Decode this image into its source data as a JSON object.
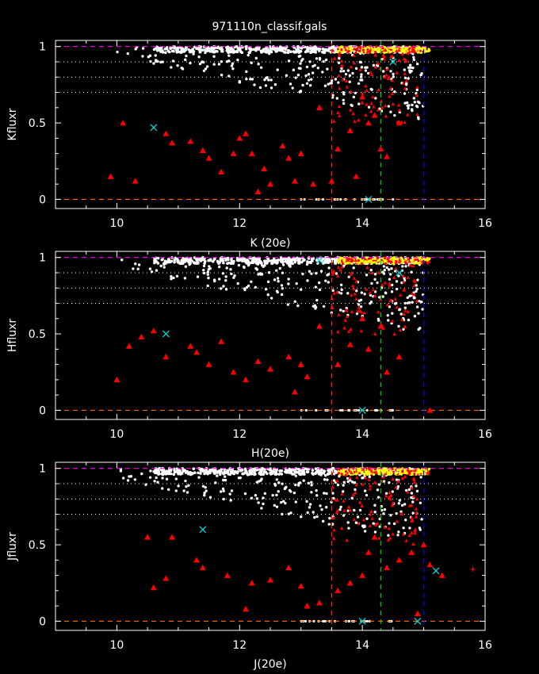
{
  "title": "971110n_classif.gals",
  "colors": {
    "background": "#000000",
    "axes": "#ffffff",
    "star": "#ff0000",
    "galaxy": "#ffffff",
    "dense": "#ffff00",
    "cross": "#00e0e0",
    "magenta": "#ff00ff",
    "orange": "#ff6600",
    "red_line": "#ff2200",
    "green_line": "#00cc00",
    "blue_line": "#0000ff"
  },
  "chart_data": [
    {
      "type": "scatter",
      "xlabel": "K (20e)",
      "ylabel": "Kfluxr",
      "xlim": [
        9,
        16
      ],
      "ylim": [
        -0.06,
        1.04
      ],
      "xticks": [
        "10",
        "12",
        "14",
        "16"
      ],
      "yticks": [
        "0",
        "0.5",
        "1"
      ],
      "hlines_dashed": [
        {
          "y": 1,
          "color": "magenta"
        },
        {
          "y": 0,
          "color": "orange"
        }
      ],
      "hlines_dotted": [
        0.9,
        0.8,
        0.7
      ],
      "vlines": [
        {
          "x": 13.5,
          "color": "red_line"
        },
        {
          "x": 14.3,
          "color": "green_line"
        },
        {
          "x": 15.0,
          "color": "blue_line"
        }
      ],
      "triangles": [
        [
          9.9,
          0.15
        ],
        [
          10.1,
          0.5
        ],
        [
          10.3,
          0.12
        ],
        [
          10.8,
          0.43
        ],
        [
          10.9,
          0.37
        ],
        [
          11.4,
          0.32
        ],
        [
          11.5,
          0.27
        ],
        [
          11.9,
          0.3
        ],
        [
          12.0,
          0.4
        ],
        [
          12.1,
          0.43
        ],
        [
          12.2,
          0.3
        ],
        [
          12.4,
          0.2
        ],
        [
          12.7,
          0.35
        ],
        [
          12.8,
          0.27
        ],
        [
          13.0,
          0.3
        ],
        [
          13.3,
          0.6
        ],
        [
          13.5,
          0.12
        ],
        [
          13.6,
          0.33
        ],
        [
          13.8,
          0.45
        ],
        [
          13.9,
          0.15
        ],
        [
          14.0,
          0.67
        ],
        [
          14.1,
          0.5
        ],
        [
          14.2,
          0.55
        ],
        [
          14.3,
          0.33
        ],
        [
          14.4,
          0.28
        ],
        [
          14.6,
          0.5
        ],
        [
          12.5,
          0.1
        ],
        [
          13.2,
          0.1
        ],
        [
          11.2,
          0.38
        ],
        [
          12.9,
          0.12
        ],
        [
          11.7,
          0.18
        ],
        [
          12.3,
          0.05
        ]
      ],
      "crosses": [
        [
          10.6,
          0.47
        ],
        [
          14.1,
          0.0
        ],
        [
          14.5,
          0.9
        ]
      ]
    },
    {
      "type": "scatter",
      "xlabel": "H(20e)",
      "ylabel": "Hfluxr",
      "xlim": [
        9,
        16
      ],
      "ylim": [
        -0.06,
        1.04
      ],
      "xticks": [
        "10",
        "12",
        "14",
        "16"
      ],
      "yticks": [
        "0",
        "0.5",
        "1"
      ],
      "hlines_dashed": [
        {
          "y": 1,
          "color": "magenta"
        },
        {
          "y": 0,
          "color": "orange"
        }
      ],
      "hlines_dotted": [
        0.9,
        0.8,
        0.7
      ],
      "vlines": [
        {
          "x": 13.5,
          "color": "red_line"
        },
        {
          "x": 14.3,
          "color": "green_line"
        },
        {
          "x": 15.0,
          "color": "blue_line"
        }
      ],
      "triangles": [
        [
          10.0,
          0.2
        ],
        [
          10.2,
          0.42
        ],
        [
          10.4,
          0.48
        ],
        [
          10.6,
          0.52
        ],
        [
          10.8,
          0.35
        ],
        [
          11.2,
          0.42
        ],
        [
          11.3,
          0.38
        ],
        [
          11.7,
          0.45
        ],
        [
          11.9,
          0.25
        ],
        [
          12.1,
          0.2
        ],
        [
          12.3,
          0.32
        ],
        [
          12.5,
          0.27
        ],
        [
          12.8,
          0.35
        ],
        [
          13.0,
          0.3
        ],
        [
          13.3,
          0.55
        ],
        [
          13.6,
          0.3
        ],
        [
          13.8,
          0.43
        ],
        [
          14.0,
          0.6
        ],
        [
          14.1,
          0.4
        ],
        [
          14.3,
          0.55
        ],
        [
          14.4,
          0.25
        ],
        [
          14.6,
          0.35
        ],
        [
          13.1,
          0.22
        ],
        [
          12.9,
          0.12
        ],
        [
          11.5,
          0.3
        ],
        [
          15.1,
          0.0
        ]
      ],
      "crosses": [
        [
          10.8,
          0.5
        ],
        [
          14.0,
          0.0
        ],
        [
          14.6,
          0.9
        ],
        [
          13.3,
          0.98
        ]
      ]
    },
    {
      "type": "scatter",
      "xlabel": "J(20e)",
      "ylabel": "Jfluxr",
      "xlim": [
        9,
        16
      ],
      "ylim": [
        -0.06,
        1.04
      ],
      "xticks": [
        "10",
        "12",
        "14",
        "16"
      ],
      "yticks": [
        "0",
        "0.5",
        "1"
      ],
      "hlines_dashed": [
        {
          "y": 1,
          "color": "magenta"
        },
        {
          "y": 0,
          "color": "orange"
        }
      ],
      "hlines_dotted": [
        0.9,
        0.8,
        0.7
      ],
      "vlines": [
        {
          "x": 13.5,
          "color": "red_line"
        },
        {
          "x": 14.3,
          "color": "green_line"
        },
        {
          "x": 15.0,
          "color": "blue_line"
        }
      ],
      "triangles": [
        [
          10.5,
          0.55
        ],
        [
          10.6,
          0.22
        ],
        [
          10.8,
          0.28
        ],
        [
          10.9,
          0.55
        ],
        [
          11.3,
          0.4
        ],
        [
          11.4,
          0.35
        ],
        [
          11.8,
          0.3
        ],
        [
          12.2,
          0.25
        ],
        [
          12.5,
          0.27
        ],
        [
          12.8,
          0.35
        ],
        [
          13.0,
          0.23
        ],
        [
          13.3,
          0.12
        ],
        [
          13.6,
          0.2
        ],
        [
          13.8,
          0.25
        ],
        [
          14.0,
          0.3
        ],
        [
          14.1,
          0.45
        ],
        [
          14.2,
          0.55
        ],
        [
          14.4,
          0.35
        ],
        [
          14.6,
          0.4
        ],
        [
          14.8,
          0.45
        ],
        [
          15.0,
          0.5
        ],
        [
          15.1,
          0.37
        ],
        [
          15.3,
          0.3
        ],
        [
          12.1,
          0.08
        ],
        [
          13.1,
          0.1
        ],
        [
          14.9,
          0.05
        ]
      ],
      "crosses": [
        [
          11.4,
          0.6
        ],
        [
          14.0,
          0.0
        ],
        [
          14.9,
          0.0
        ],
        [
          15.2,
          0.33
        ]
      ],
      "plus": [
        [
          15.8,
          0.34
        ]
      ]
    }
  ]
}
